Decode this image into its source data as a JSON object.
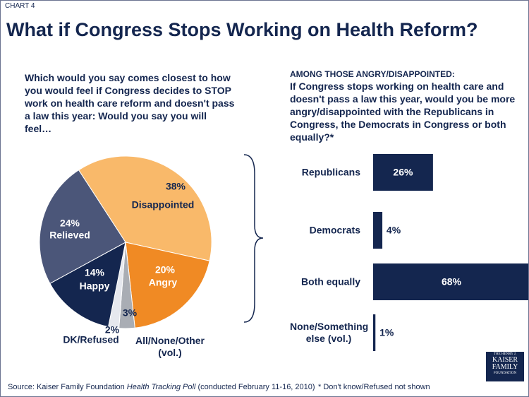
{
  "chart_label": "CHART 4",
  "title": "What if Congress Stops Working on Health Reform?",
  "chart_data": [
    {
      "type": "pie",
      "subtitle": "Which would you say comes closest to how you would feel if Congress decides to STOP work on health care reform and doesn't pass a law this year: Would you say you will feel…",
      "categories": [
        "Disappointed",
        "Angry",
        "All/None/Other (vol.)",
        "DK/Refused",
        "Happy",
        "Relieved"
      ],
      "values": [
        38,
        20,
        3,
        2,
        14,
        24
      ],
      "value_labels": [
        "38%",
        "20%",
        "3%",
        "2%",
        "14%",
        "24%"
      ],
      "colors": [
        "#f9b96a",
        "#f08a24",
        "#a9adb4",
        "#e6e8ee",
        "#14264f",
        "#4b5679"
      ]
    },
    {
      "type": "bar",
      "orientation": "horizontal",
      "subtitle": "AMONG THOSE ANGRY/DISAPPOINTED:",
      "question": "If Congress stops working on health care and doesn't pass a law this year, would you be more angry/disappointed with the Republicans in Congress, the Democrats in Congress or both equally?*",
      "categories": [
        "Republicans",
        "Democrats",
        "Both equally",
        "None/Something else (vol.)"
      ],
      "values": [
        26,
        4,
        68,
        1
      ],
      "value_labels": [
        "26%",
        "4%",
        "68%",
        "1%"
      ],
      "color": "#14264f"
    }
  ],
  "source": {
    "prefix": "Source: Kaiser Family Foundation",
    "italic": "Health Tracking Poll",
    "suffix": "(conducted February 11-16, 2010)"
  },
  "footnote": "* Don't know/Refused not shown",
  "logo": [
    "THE HENRY J.",
    "KAISER",
    "FAMILY",
    "FOUNDATION"
  ]
}
